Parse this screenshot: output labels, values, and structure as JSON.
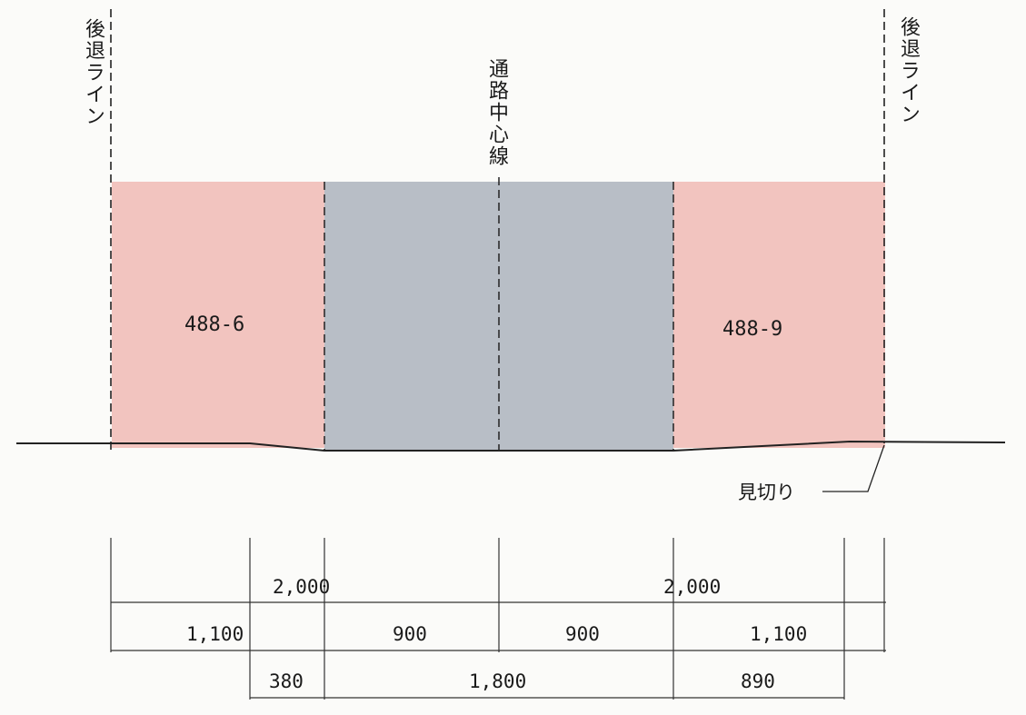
{
  "labels": {
    "setback_left": "後退ライン",
    "setback_right": "後退ライン",
    "road_center": "通路中心線",
    "lot_left": "488-6",
    "lot_right": "488-9",
    "boundary_note": "見切り"
  },
  "dimensions": {
    "top_left": "2,000",
    "top_right": "2,000",
    "mid_1": "1,100",
    "mid_2": "900",
    "mid_3": "900",
    "mid_4": "1,100",
    "bot_1": "380",
    "bot_2": "1,800",
    "bot_3": "890"
  },
  "colors": {
    "lot_fill": "#f2c4bf",
    "road_fill": "#b8bec6",
    "line": "#222222"
  }
}
